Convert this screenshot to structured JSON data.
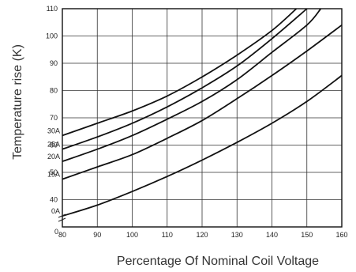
{
  "chart_data": {
    "type": "line",
    "title": "",
    "xlabel": "Percentage Of Nominal Coil Voltage",
    "ylabel": "Temperature rise (K)",
    "xlim": [
      80,
      160
    ],
    "ylim": [
      30,
      110
    ],
    "x_ticks": [
      {
        "value": 80,
        "label": "80"
      },
      {
        "value": 90,
        "label": "90"
      },
      {
        "value": 100,
        "label": "100"
      },
      {
        "value": 110,
        "label": "110"
      },
      {
        "value": 120,
        "label": "120"
      },
      {
        "value": 130,
        "label": "130"
      },
      {
        "value": 140,
        "label": "140"
      },
      {
        "value": 150,
        "label": "150"
      },
      {
        "value": 160,
        "label": "160"
      }
    ],
    "y_ticks": [
      {
        "value": 40,
        "label": "40"
      },
      {
        "value": 50,
        "label": "50"
      },
      {
        "value": 60,
        "label": "60"
      },
      {
        "value": 70,
        "label": "70"
      },
      {
        "value": 80,
        "label": "80"
      },
      {
        "value": 90,
        "label": "90"
      },
      {
        "value": 100,
        "label": "100"
      },
      {
        "value": 110,
        "label": "110"
      }
    ],
    "origin_label": "0",
    "axis_break": true,
    "grid": true,
    "series": [
      {
        "name": "30A",
        "points": [
          [
            80,
            63.5
          ],
          [
            90,
            68
          ],
          [
            100,
            72.5
          ],
          [
            110,
            78
          ],
          [
            120,
            85
          ],
          [
            130,
            93
          ],
          [
            140,
            102
          ],
          [
            147,
            110
          ]
        ]
      },
      {
        "name": "25A",
        "points": [
          [
            80,
            58.5
          ],
          [
            90,
            63
          ],
          [
            100,
            68
          ],
          [
            110,
            74
          ],
          [
            120,
            81
          ],
          [
            130,
            89
          ],
          [
            140,
            99
          ],
          [
            150,
            110
          ]
        ]
      },
      {
        "name": "20A",
        "points": [
          [
            80,
            54
          ],
          [
            90,
            58.5
          ],
          [
            100,
            63.5
          ],
          [
            110,
            69.5
          ],
          [
            120,
            76
          ],
          [
            130,
            84
          ],
          [
            140,
            94
          ],
          [
            150,
            104
          ],
          [
            154,
            110
          ]
        ]
      },
      {
        "name": "15A",
        "points": [
          [
            80,
            47.5
          ],
          [
            90,
            52
          ],
          [
            100,
            56.5
          ],
          [
            110,
            62.5
          ],
          [
            120,
            69
          ],
          [
            130,
            77
          ],
          [
            140,
            85.5
          ],
          [
            150,
            94.5
          ],
          [
            160,
            104
          ]
        ]
      },
      {
        "name": "0A",
        "points": [
          [
            80,
            34
          ],
          [
            90,
            38
          ],
          [
            100,
            43
          ],
          [
            110,
            48.5
          ],
          [
            120,
            54.5
          ],
          [
            130,
            61
          ],
          [
            140,
            68
          ],
          [
            150,
            76
          ],
          [
            160,
            85.5
          ]
        ]
      }
    ]
  }
}
